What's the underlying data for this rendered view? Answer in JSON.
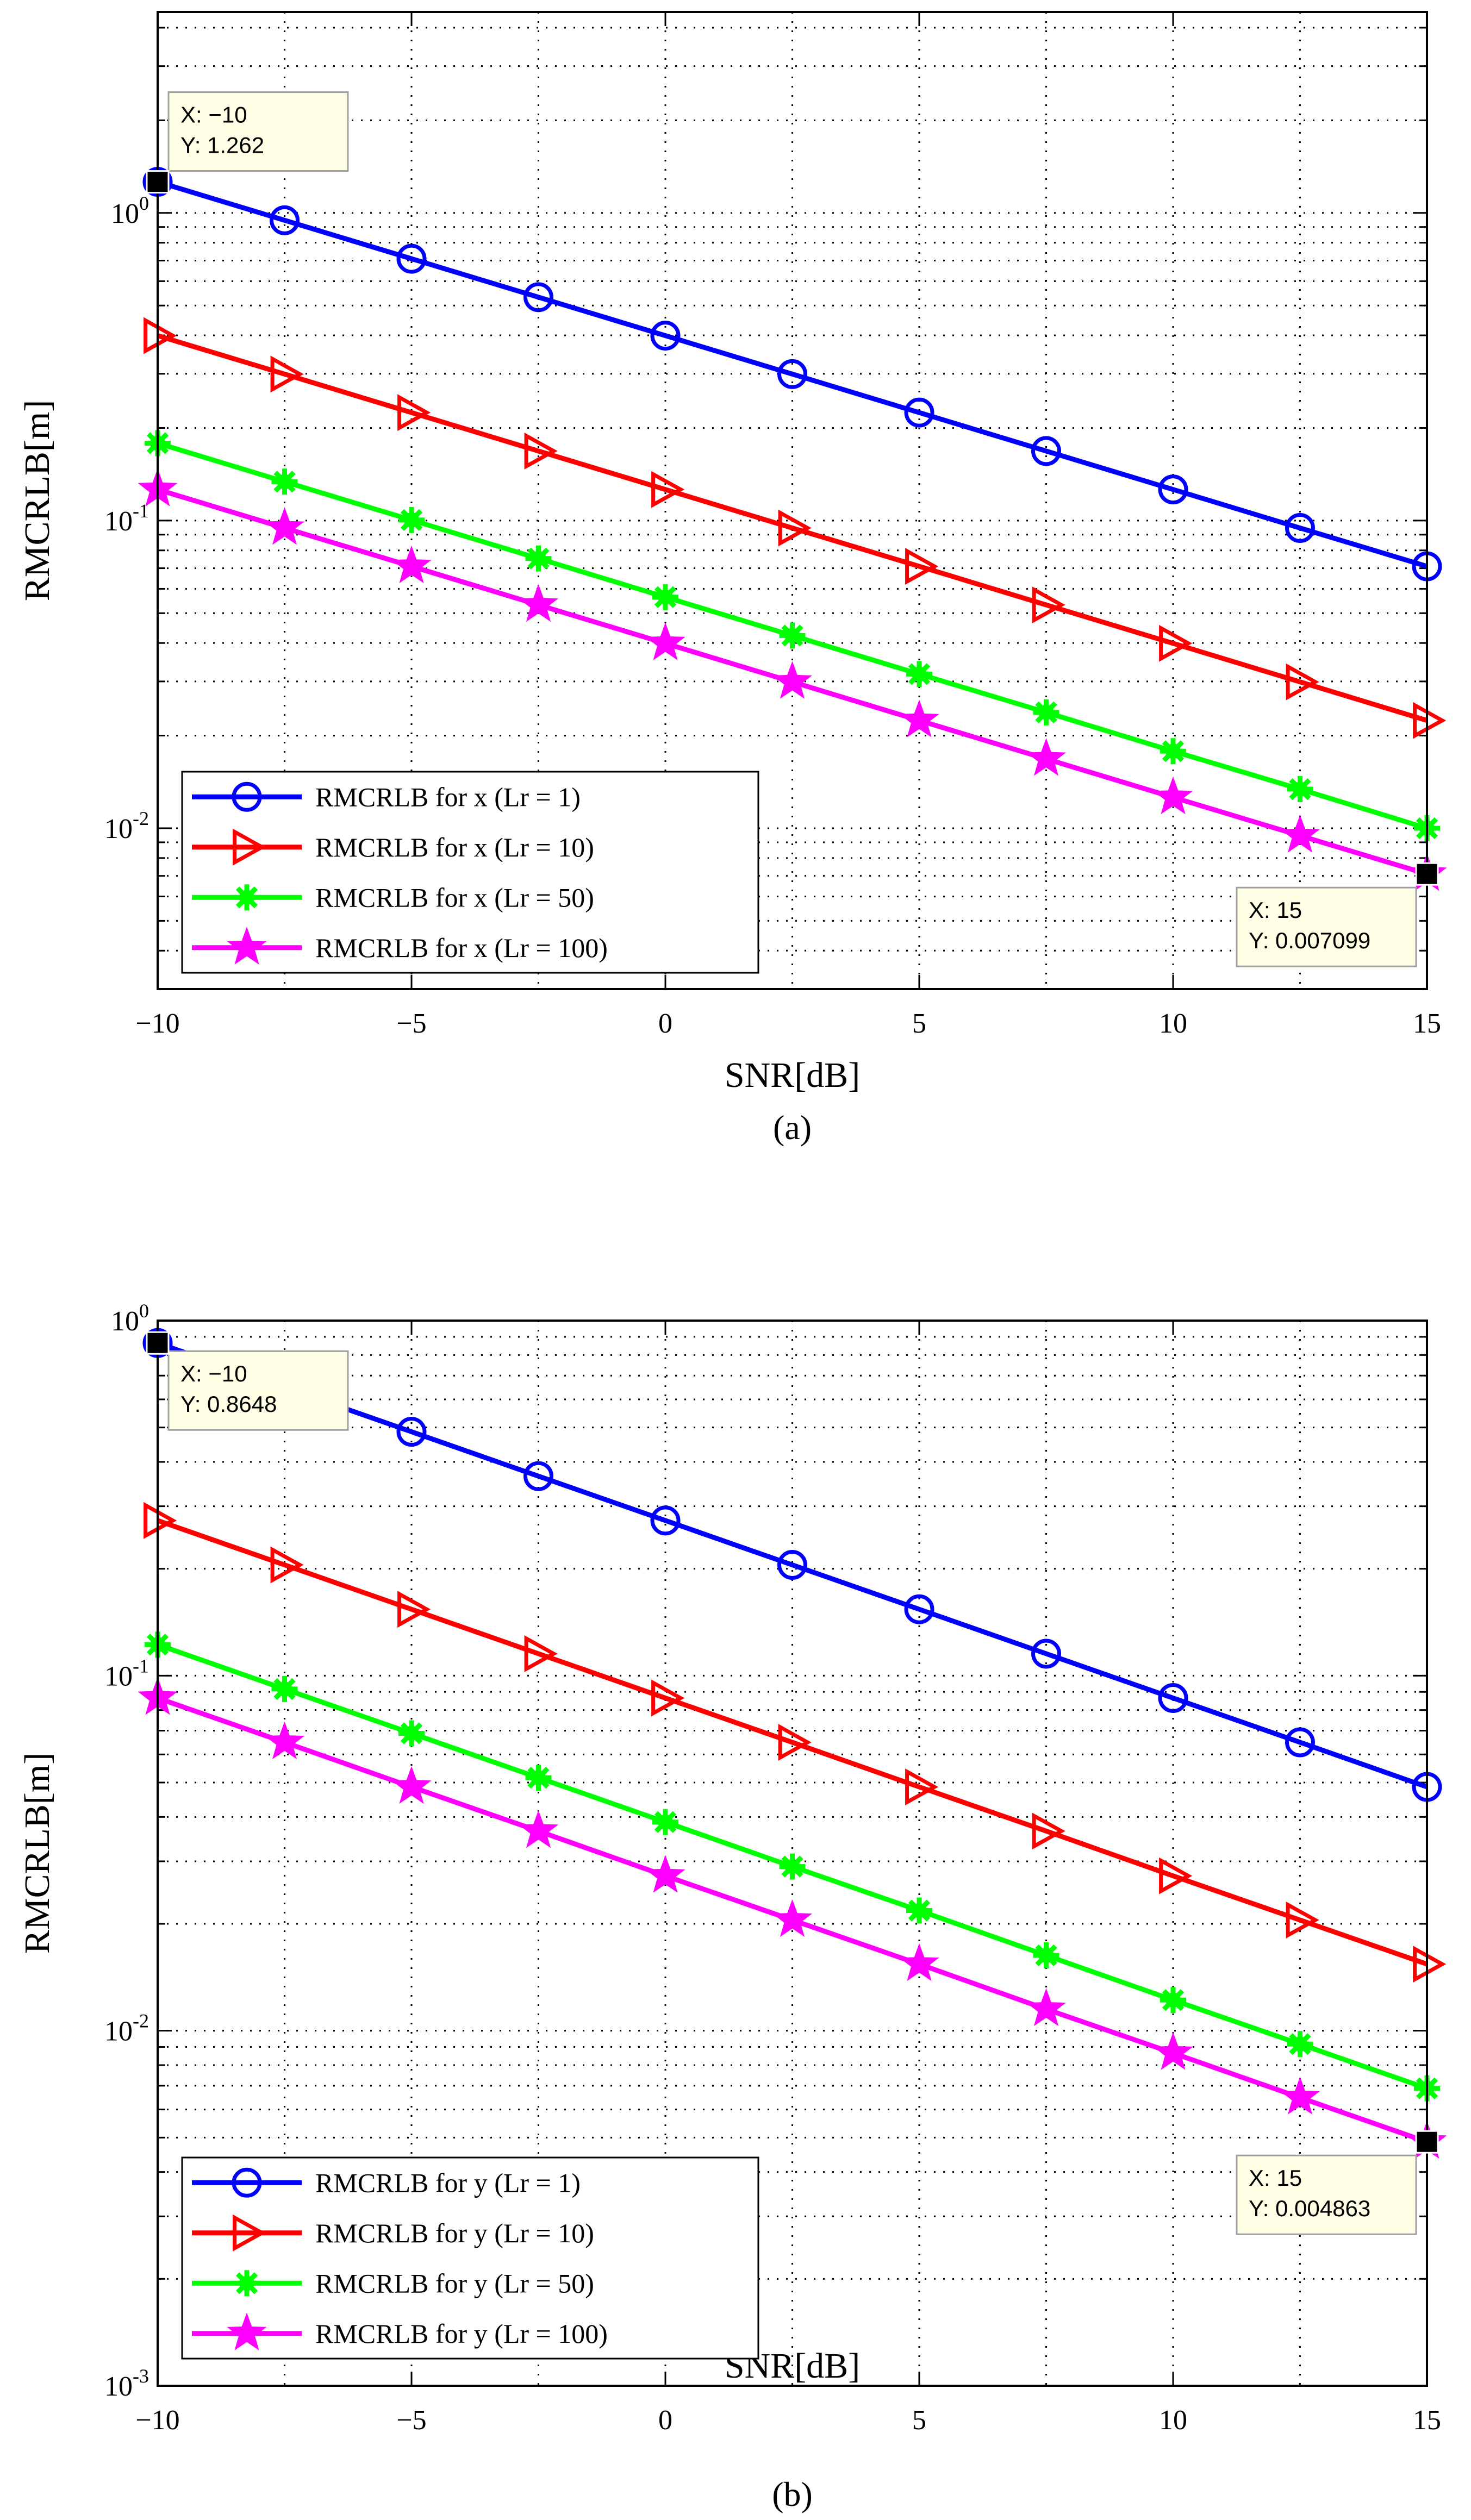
{
  "chart_data": [
    {
      "type": "line",
      "caption": "(a)",
      "xlabel": "SNR[dB]",
      "ylabel": "RMCRLB[m]",
      "xlim": [
        -10,
        15
      ],
      "ylim": [
        0.003,
        4.5
      ],
      "yscale": "log",
      "grid": true,
      "legend_position": "bottom-left",
      "x_ticks": [
        "−10",
        "−5",
        "0",
        "5",
        "10",
        "15"
      ],
      "x_tick_values": [
        -10,
        -5,
        0,
        5,
        10,
        15
      ],
      "y_ticks": [
        {
          "base": "10",
          "exp": "-2",
          "value": 0.01
        },
        {
          "base": "10",
          "exp": "-1",
          "value": 0.1
        },
        {
          "base": "10",
          "exp": "0",
          "value": 1
        }
      ],
      "x": [
        -10,
        -7.5,
        -5,
        -2.5,
        0,
        2.5,
        5,
        7.5,
        10,
        12.5,
        15
      ],
      "series": [
        {
          "name": "RMCRLB for x (Lr = 1)",
          "color": "#0000ff",
          "marker": "circle",
          "values": [
            1.262,
            0.9464,
            0.7097,
            0.5322,
            0.3991,
            0.2993,
            0.2244,
            0.1683,
            0.1262,
            0.0946,
            0.071
          ]
        },
        {
          "name": "RMCRLB for x (Lr = 10)",
          "color": "#ff0000",
          "marker": "triangle-right",
          "values": [
            0.3991,
            0.2993,
            0.2244,
            0.1683,
            0.1262,
            0.0946,
            0.071,
            0.0532,
            0.0399,
            0.0299,
            0.0224
          ]
        },
        {
          "name": "RMCRLB for x (Lr = 50)",
          "color": "#00ff00",
          "marker": "asterisk",
          "values": [
            0.1785,
            0.1338,
            0.1004,
            0.0753,
            0.0564,
            0.0423,
            0.0317,
            0.0238,
            0.0178,
            0.0134,
            0.01
          ]
        },
        {
          "name": "RMCRLB for x (Lr = 100)",
          "color": "#ff00ff",
          "marker": "star",
          "values": [
            0.1262,
            0.0946,
            0.071,
            0.0532,
            0.0399,
            0.0299,
            0.0224,
            0.0168,
            0.0126,
            0.00946,
            0.007099
          ]
        }
      ],
      "annotations": [
        {
          "x": -10,
          "y": 1.262,
          "line1": "X: −10",
          "line2": "Y: 1.262",
          "placement": "above-right"
        },
        {
          "x": 15,
          "y": 0.007099,
          "line1": "X: 15",
          "line2": "Y: 0.007099",
          "placement": "below-left"
        }
      ]
    },
    {
      "type": "line",
      "caption": "(b)",
      "xlabel": "SNR[dB]",
      "ylabel": "RMCRLB[m]",
      "xlim": [
        -10,
        15
      ],
      "ylim": [
        0.001,
        1
      ],
      "yscale": "log",
      "grid": true,
      "legend_position": "bottom-left",
      "x_ticks": [
        "−10",
        "−5",
        "0",
        "5",
        "10",
        "15"
      ],
      "x_tick_values": [
        -10,
        -5,
        0,
        5,
        10,
        15
      ],
      "y_ticks": [
        {
          "base": "10",
          "exp": "-3",
          "value": 0.001
        },
        {
          "base": "10",
          "exp": "-2",
          "value": 0.01
        },
        {
          "base": "10",
          "exp": "-1",
          "value": 0.1
        },
        {
          "base": "10",
          "exp": "0",
          "value": 1
        }
      ],
      "x": [
        -10,
        -7.5,
        -5,
        -2.5,
        0,
        2.5,
        5,
        7.5,
        10,
        12.5,
        15
      ],
      "series": [
        {
          "name": "RMCRLB for y (Lr = 1)",
          "color": "#0000ff",
          "marker": "circle",
          "values": [
            0.8648,
            0.6485,
            0.4863,
            0.3647,
            0.2735,
            0.2051,
            0.1538,
            0.1153,
            0.0865,
            0.0649,
            0.0486
          ]
        },
        {
          "name": "RMCRLB for y (Lr = 10)",
          "color": "#ff0000",
          "marker": "triangle-right",
          "values": [
            0.2735,
            0.2051,
            0.1538,
            0.1153,
            0.0865,
            0.0649,
            0.0486,
            0.0365,
            0.0273,
            0.0205,
            0.0154
          ]
        },
        {
          "name": "RMCRLB for y (Lr = 50)",
          "color": "#00ff00",
          "marker": "asterisk",
          "values": [
            0.1223,
            0.0917,
            0.0688,
            0.0516,
            0.0387,
            0.029,
            0.0218,
            0.0163,
            0.0122,
            0.00917,
            0.00688
          ]
        },
        {
          "name": "RMCRLB for y (Lr = 100)",
          "color": "#ff00ff",
          "marker": "star",
          "values": [
            0.0865,
            0.0649,
            0.0486,
            0.0365,
            0.0273,
            0.0205,
            0.0154,
            0.0115,
            0.00865,
            0.00648,
            0.004863
          ]
        }
      ],
      "annotations": [
        {
          "x": -10,
          "y": 0.8648,
          "line1": "X: −10",
          "line2": "Y: 0.8648",
          "placement": "below-right"
        },
        {
          "x": 15,
          "y": 0.004863,
          "line1": "X: 15",
          "line2": "Y: 0.004863",
          "placement": "below-left"
        }
      ]
    }
  ]
}
